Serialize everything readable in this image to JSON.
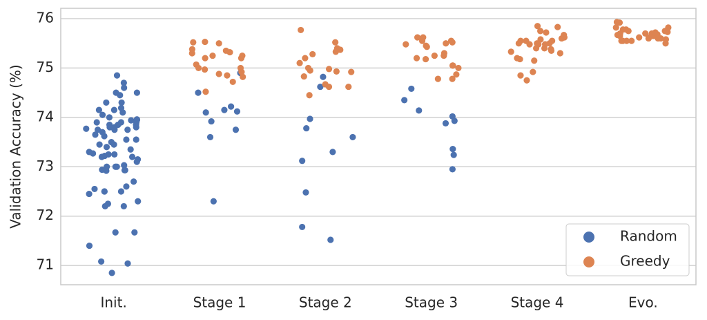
{
  "chart_data": {
    "type": "strip",
    "ylabel": "Validation Accuracy (%)",
    "categories": [
      "Init.",
      "Stage 1",
      "Stage 2",
      "Stage 3",
      "Stage 4",
      "Evo."
    ],
    "ylim": [
      70.61,
      76.21
    ],
    "yticks": [
      71,
      72,
      73,
      74,
      75,
      76
    ],
    "grid": true,
    "legend": "lower right",
    "series": [
      {
        "name": "Random",
        "color": "#4c72b0",
        "values": [
          [
            73.77,
            73.1,
            72.94,
            73.75,
            73.55,
            73.0,
            73.62,
            73.75,
            71.04,
            74.5,
            74.7,
            74.19,
            73.94,
            73.45,
            73.0,
            72.93,
            72.93,
            72.45,
            72.2,
            70.85,
            73.96,
            73.35,
            73.27,
            73.25,
            74.5,
            74.6,
            74.3,
            73.85,
            73.9,
            73.55,
            73.4,
            73.22,
            73.2,
            72.5,
            72.55,
            74.05,
            73.8,
            73.7,
            73.15,
            73.0,
            72.6,
            71.67,
            71.4,
            71.08,
            74.85,
            74.15,
            74.0,
            73.9,
            73.8,
            73.3,
            72.92,
            72.2,
            74.1,
            73.95,
            73.75,
            73.65,
            73.25,
            73.2,
            74.3,
            73.85,
            72.5,
            71.67,
            74.45,
            74.15,
            73.85,
            73.5,
            72.7,
            72.5,
            73.9,
            73.8,
            73.45,
            73.03,
            72.3,
            72.25
          ],
          [
            74.22,
            74.1,
            74.15,
            73.92,
            73.6,
            72.3,
            73.75,
            74.9,
            74.5,
            74.12
          ],
          [
            71.78,
            74.62,
            73.78,
            73.12,
            73.6,
            73.97,
            73.3,
            72.48,
            74.82,
            71.52
          ],
          [
            74.58,
            73.93,
            74.02,
            73.36,
            72.95,
            73.24,
            73.88,
            74.14,
            74.35
          ],
          [],
          []
        ]
      },
      {
        "name": "Greedy",
        "color": "#dd8452",
        "values": [
          [],
          [
            74.52,
            75.07,
            75.3,
            75.35,
            74.97,
            74.72,
            75.5,
            75.32,
            75.2,
            75.0,
            75.53,
            75.25,
            75.2,
            75.0,
            74.88,
            75.38,
            75.25,
            74.85,
            74.82,
            75.52,
            74.92
          ],
          [
            75.0,
            74.92,
            74.98,
            75.52,
            75.28,
            74.95,
            74.45,
            74.62,
            75.77,
            75.37,
            74.93,
            75.4,
            74.67,
            75.1,
            74.83,
            74.62,
            75.2,
            75.33
          ],
          [
            75.05,
            75.48,
            75.52,
            75.55,
            75.0,
            74.87,
            75.5,
            75.43,
            75.62,
            75.25,
            74.78,
            75.18,
            75.2,
            75.45,
            75.05,
            75.25,
            75.62,
            74.78,
            75.3,
            75.55
          ],
          [
            75.5,
            74.92,
            74.85,
            74.75,
            75.67,
            75.62,
            75.4,
            75.83,
            75.3,
            75.55,
            75.48,
            75.2,
            75.5,
            75.75,
            75.55,
            75.6,
            75.4,
            75.18,
            75.15,
            75.5,
            75.72,
            75.48,
            75.58,
            75.85,
            75.35,
            75.48,
            75.38,
            75.33,
            75.55
          ],
          [
            75.7,
            75.55,
            75.65,
            75.55,
            75.75,
            75.7,
            75.62,
            75.92,
            75.6,
            75.6,
            75.58,
            75.5,
            75.65,
            75.82,
            75.93,
            75.68,
            75.6,
            75.72,
            75.75,
            75.67,
            75.78,
            75.65,
            75.55,
            75.7,
            75.82,
            75.62,
            75.73,
            75.78,
            75.55
          ]
        ]
      }
    ]
  }
}
